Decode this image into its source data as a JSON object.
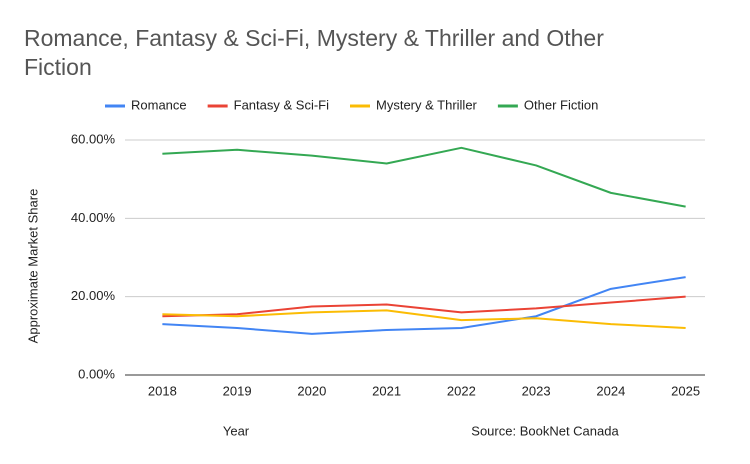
{
  "chart_data": {
    "type": "line",
    "title": "Romance, Fantasy & Sci-Fi, Mystery & Thriller and Other Fiction",
    "x_label": "Year",
    "y_label": "Approximate Market Share",
    "annotation": "Source: BookNet Canada",
    "categories": [
      "2018",
      "2019",
      "2020",
      "2021",
      "2022",
      "2023",
      "2024",
      "2025"
    ],
    "series": [
      {
        "name": "Romance",
        "color": "#4285f4",
        "values": [
          13,
          12,
          10.5,
          11.5,
          12,
          15,
          22,
          25
        ]
      },
      {
        "name": "Fantasy & Sci-Fi",
        "color": "#ea4335",
        "values": [
          15,
          15.5,
          17.5,
          18,
          16,
          17,
          18.5,
          20
        ]
      },
      {
        "name": "Mystery & Thriller",
        "color": "#fbbc04",
        "values": [
          15.5,
          15,
          16,
          16.5,
          14,
          14.5,
          13,
          12
        ]
      },
      {
        "name": "Other Fiction",
        "color": "#34a853",
        "values": [
          56.5,
          57.5,
          56,
          54,
          58,
          53.5,
          46.5,
          43
        ]
      }
    ],
    "ylim": [
      0,
      60
    ],
    "yticks": [
      {
        "value": 0,
        "label": "0.00%"
      },
      {
        "value": 20,
        "label": "20.00%"
      },
      {
        "value": 40,
        "label": "40.00%"
      },
      {
        "value": 60,
        "label": "60.00%"
      }
    ],
    "grid": true,
    "legend": "top"
  }
}
